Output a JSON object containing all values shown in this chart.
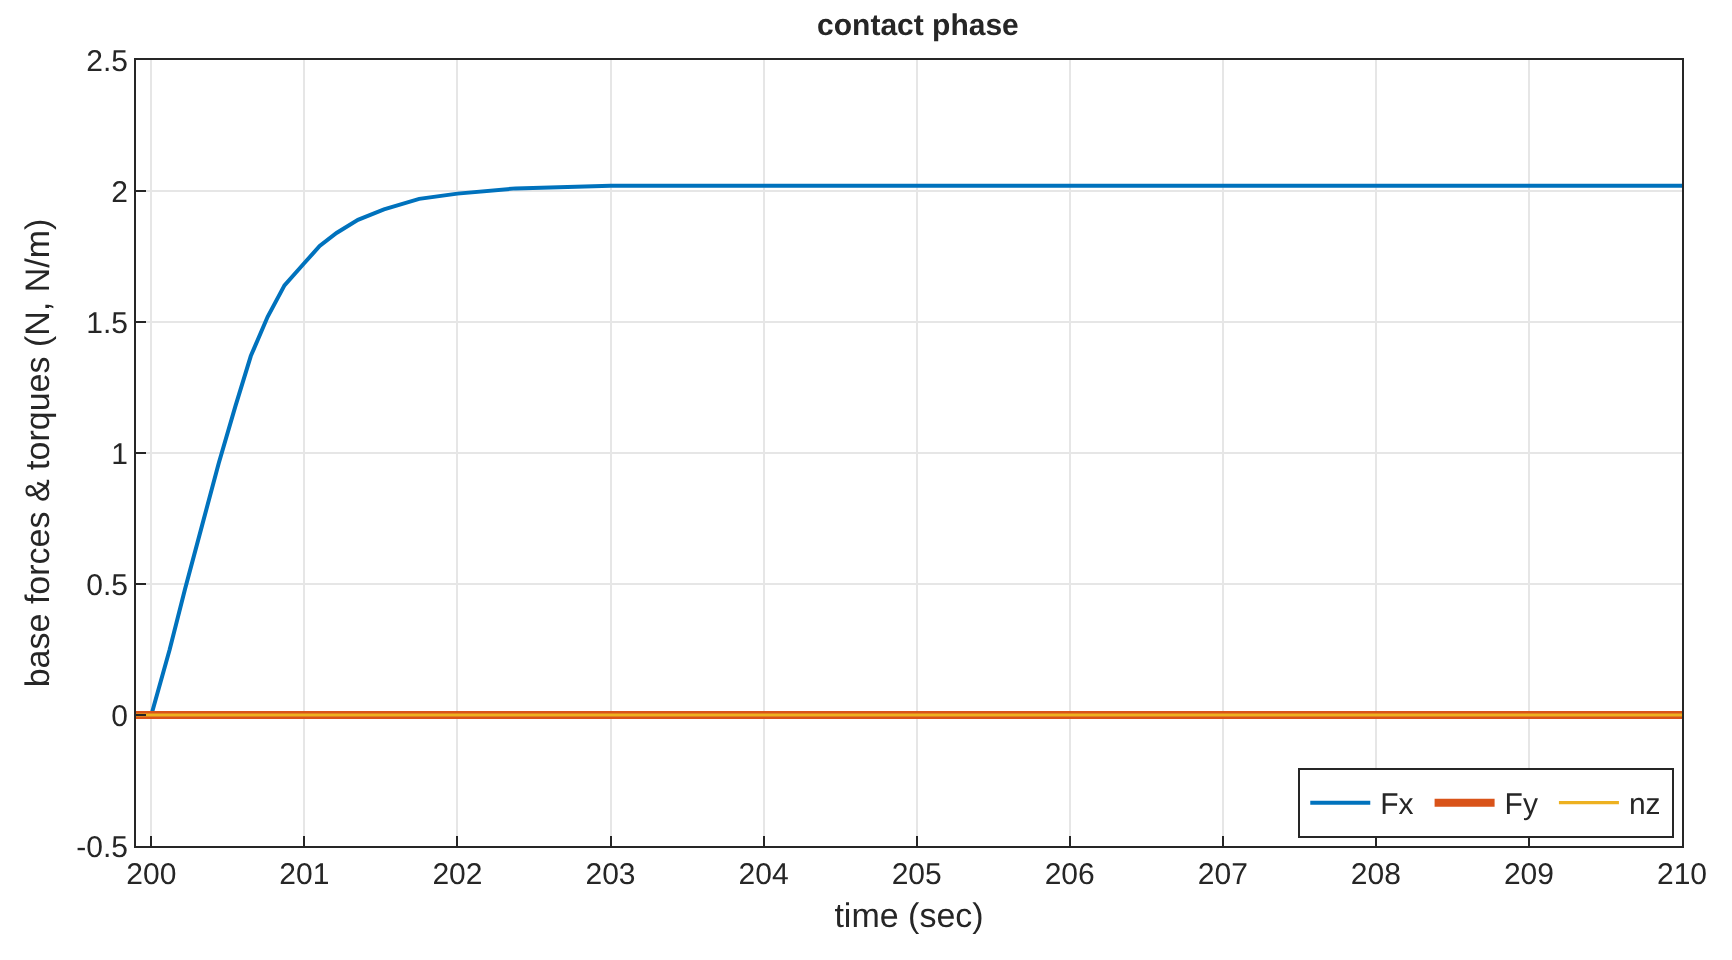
{
  "chart_data": {
    "type": "line",
    "title": "contact phase",
    "xlabel": "time (sec)",
    "ylabel": "base forces & torques (N, N/m)",
    "series": [
      {
        "name": "Fx",
        "color": "#0072bd",
        "x": [
          199.9,
          200.0,
          200.12,
          200.22,
          200.33,
          200.44,
          200.55,
          200.65,
          200.76,
          200.87,
          201.0,
          201.1,
          201.21,
          201.35,
          201.52,
          201.75,
          202.0,
          202.38,
          203,
          204,
          205,
          206,
          207,
          208,
          209,
          210
        ],
        "values": [
          0,
          0,
          0.25,
          0.48,
          0.72,
          0.96,
          1.18,
          1.37,
          1.52,
          1.64,
          1.725,
          1.79,
          1.84,
          1.89,
          1.93,
          1.97,
          1.99,
          2.01,
          2.02,
          2.02,
          2.02,
          2.02,
          2.02,
          2.02,
          2.02,
          2.02
        ]
      },
      {
        "name": "Fy",
        "color": "#d95319",
        "x": [
          199.9,
          210
        ],
        "values": [
          0,
          0
        ]
      },
      {
        "name": "nz",
        "color": "#edb120",
        "x": [
          199.9,
          210
        ],
        "values": [
          0,
          0
        ]
      }
    ],
    "xlim": [
      199.9,
      210
    ],
    "xticks": [
      200,
      201,
      202,
      203,
      204,
      205,
      206,
      207,
      208,
      209,
      210
    ],
    "ylim": [
      -0.5,
      2.5
    ],
    "yticks": [
      -0.5,
      0,
      0.5,
      1,
      1.5,
      2,
      2.5
    ],
    "grid": true,
    "legend": "bottom right",
    "line_style": "solid"
  }
}
